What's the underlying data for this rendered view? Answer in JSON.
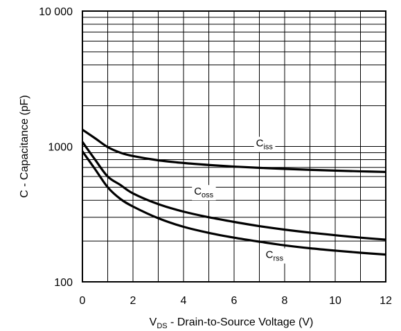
{
  "chart_data": {
    "type": "line",
    "title": "",
    "xlabel": {
      "main": "V",
      "sub": "DS",
      "rest": " - Drain-to-Source Voltage (V)"
    },
    "ylabel": "C - Capacitance (pF)",
    "xlim": [
      0,
      12
    ],
    "ylim": [
      100,
      10000
    ],
    "y_scale": "log",
    "grid": true,
    "x_ticks": [
      0,
      2,
      4,
      6,
      8,
      10,
      12
    ],
    "x_tick_labels": [
      "0",
      "2",
      "4",
      "6",
      "8",
      "10",
      "12"
    ],
    "y_ticks": [
      100,
      1000,
      10000
    ],
    "y_tick_labels": [
      "100",
      "1000",
      "10 000"
    ],
    "series": [
      {
        "name": "Ciss",
        "label_main": "C",
        "label_sub": "iss",
        "label_at": [
          7.2,
          1000
        ],
        "x": [
          0,
          0.5,
          1,
          1.5,
          2,
          3,
          4,
          5,
          6,
          7,
          8,
          9,
          10,
          11,
          12
        ],
        "y": [
          1330,
          1150,
          990,
          900,
          850,
          790,
          755,
          730,
          710,
          695,
          683,
          672,
          663,
          655,
          648
        ]
      },
      {
        "name": "Coss",
        "label_main": "C",
        "label_sub": "oss",
        "label_at": [
          4.8,
          440
        ],
        "x": [
          0,
          0.5,
          1,
          1.5,
          2,
          3,
          4,
          5,
          6,
          7,
          8,
          9,
          10,
          11,
          12
        ],
        "y": [
          1080,
          800,
          600,
          520,
          450,
          375,
          330,
          300,
          277,
          258,
          243,
          231,
          221,
          212,
          205
        ]
      },
      {
        "name": "Crss",
        "label_main": "C",
        "label_sub": "rss",
        "label_at": [
          7.6,
          150
        ],
        "x": [
          0,
          0.5,
          1,
          1.5,
          2,
          3,
          4,
          5,
          6,
          7,
          8,
          9,
          10,
          11,
          12
        ],
        "y": [
          920,
          680,
          500,
          410,
          360,
          295,
          255,
          230,
          212,
          198,
          186,
          177,
          170,
          164,
          159
        ]
      }
    ]
  }
}
